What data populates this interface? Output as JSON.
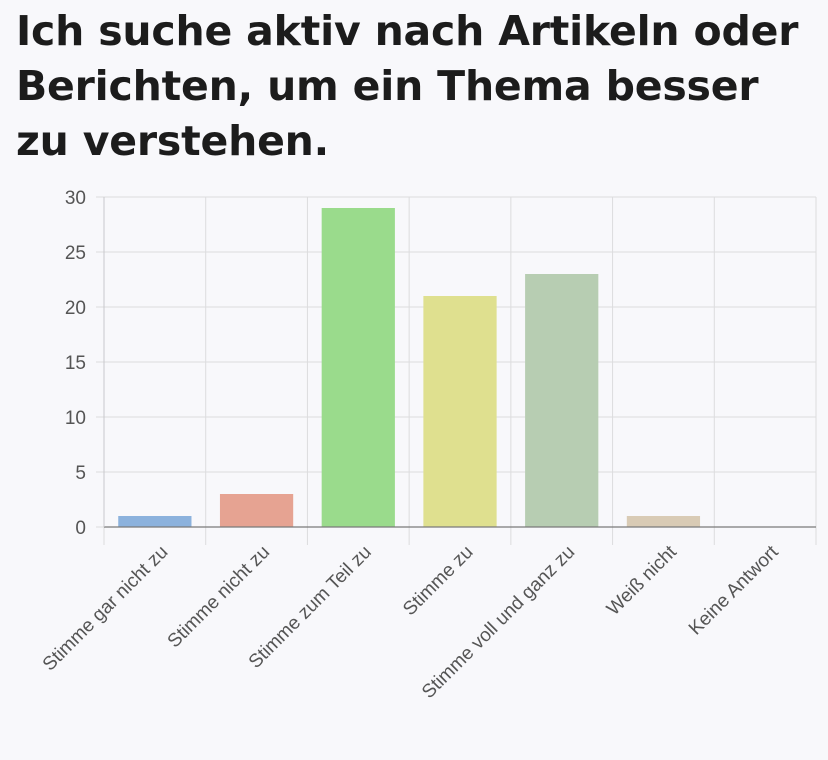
{
  "title": "Ich suche aktiv nach Artikeln oder Berichten, um ein Thema besser zu verstehen.",
  "chart_data": {
    "type": "bar",
    "title": "Ich suche aktiv nach Artikeln oder Berichten, um ein Thema besser zu verstehen.",
    "xlabel": "",
    "ylabel": "",
    "categories": [
      "Stimme gar nicht zu",
      "Stimme nicht zu",
      "Stimme zum Teil zu",
      "Stimme zu",
      "Stimme voll und ganz zu",
      "Weiß nicht",
      "Keine Antwort"
    ],
    "values": [
      1,
      3,
      29,
      21,
      23,
      1,
      0
    ],
    "colors": [
      "#8cb2dd",
      "#e6a392",
      "#9adb8c",
      "#dfe08f",
      "#b7cdb2",
      "#d9cbb5",
      "#cccccc"
    ],
    "ylim": [
      0,
      30
    ],
    "yticks": [
      "0",
      "5",
      "10",
      "15",
      "20",
      "25",
      "30"
    ],
    "grid": true,
    "legend": "none"
  }
}
